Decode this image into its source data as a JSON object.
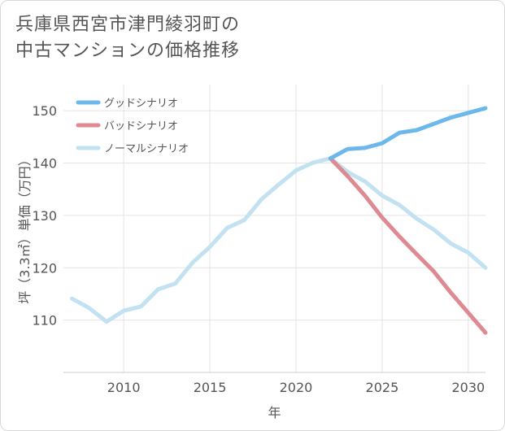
{
  "title_lines": [
    "兵庫県西宮市津門綾羽町の",
    "中古マンションの価格推移"
  ],
  "chart_data": {
    "type": "line",
    "title": "兵庫県西宮市津門綾羽町の中古マンションの価格推移",
    "xlabel": "年",
    "ylabel": "坪（3.3㎡）単価（万円）",
    "xlim": [
      2006.5,
      2031
    ],
    "ylim": [
      100,
      155
    ],
    "xticks": [
      2010,
      2015,
      2020,
      2025,
      2030
    ],
    "yticks": [
      110,
      120,
      130,
      140,
      150
    ],
    "grid": true,
    "legend_position": "top-left",
    "series": [
      {
        "name": "グッドシナリオ",
        "color": "#6cb8ec",
        "x": [
          2022,
          2023,
          2024,
          2025,
          2026,
          2027,
          2028,
          2029,
          2030,
          2031
        ],
        "values": [
          140.9,
          142.7,
          142.9,
          143.8,
          145.8,
          146.3,
          147.5,
          148.7,
          149.6,
          150.5
        ]
      },
      {
        "name": "バッドシナリオ",
        "color": "#dd8a92",
        "x": [
          2022,
          2023,
          2024,
          2025,
          2026,
          2027,
          2028,
          2029,
          2030,
          2031
        ],
        "values": [
          140.9,
          137.5,
          133.8,
          129.6,
          126.0,
          122.6,
          119.3,
          115.2,
          111.4,
          107.6
        ]
      },
      {
        "name": "ノーマルシナリオ",
        "color": "#c2e1f1",
        "x": [
          2007,
          2008,
          2009,
          2010,
          2011,
          2012,
          2013,
          2014,
          2015,
          2016,
          2017,
          2018,
          2019,
          2020,
          2021,
          2022,
          2023,
          2024,
          2025,
          2026,
          2027,
          2028,
          2029,
          2030,
          2031
        ],
        "values": [
          114.1,
          112.3,
          109.7,
          111.8,
          112.6,
          115.9,
          117.0,
          121.0,
          124.0,
          127.6,
          129.1,
          133.1,
          135.9,
          138.6,
          140.1,
          140.9,
          138.3,
          136.5,
          133.8,
          132.0,
          129.4,
          127.3,
          124.6,
          122.9,
          120.0
        ]
      }
    ]
  }
}
